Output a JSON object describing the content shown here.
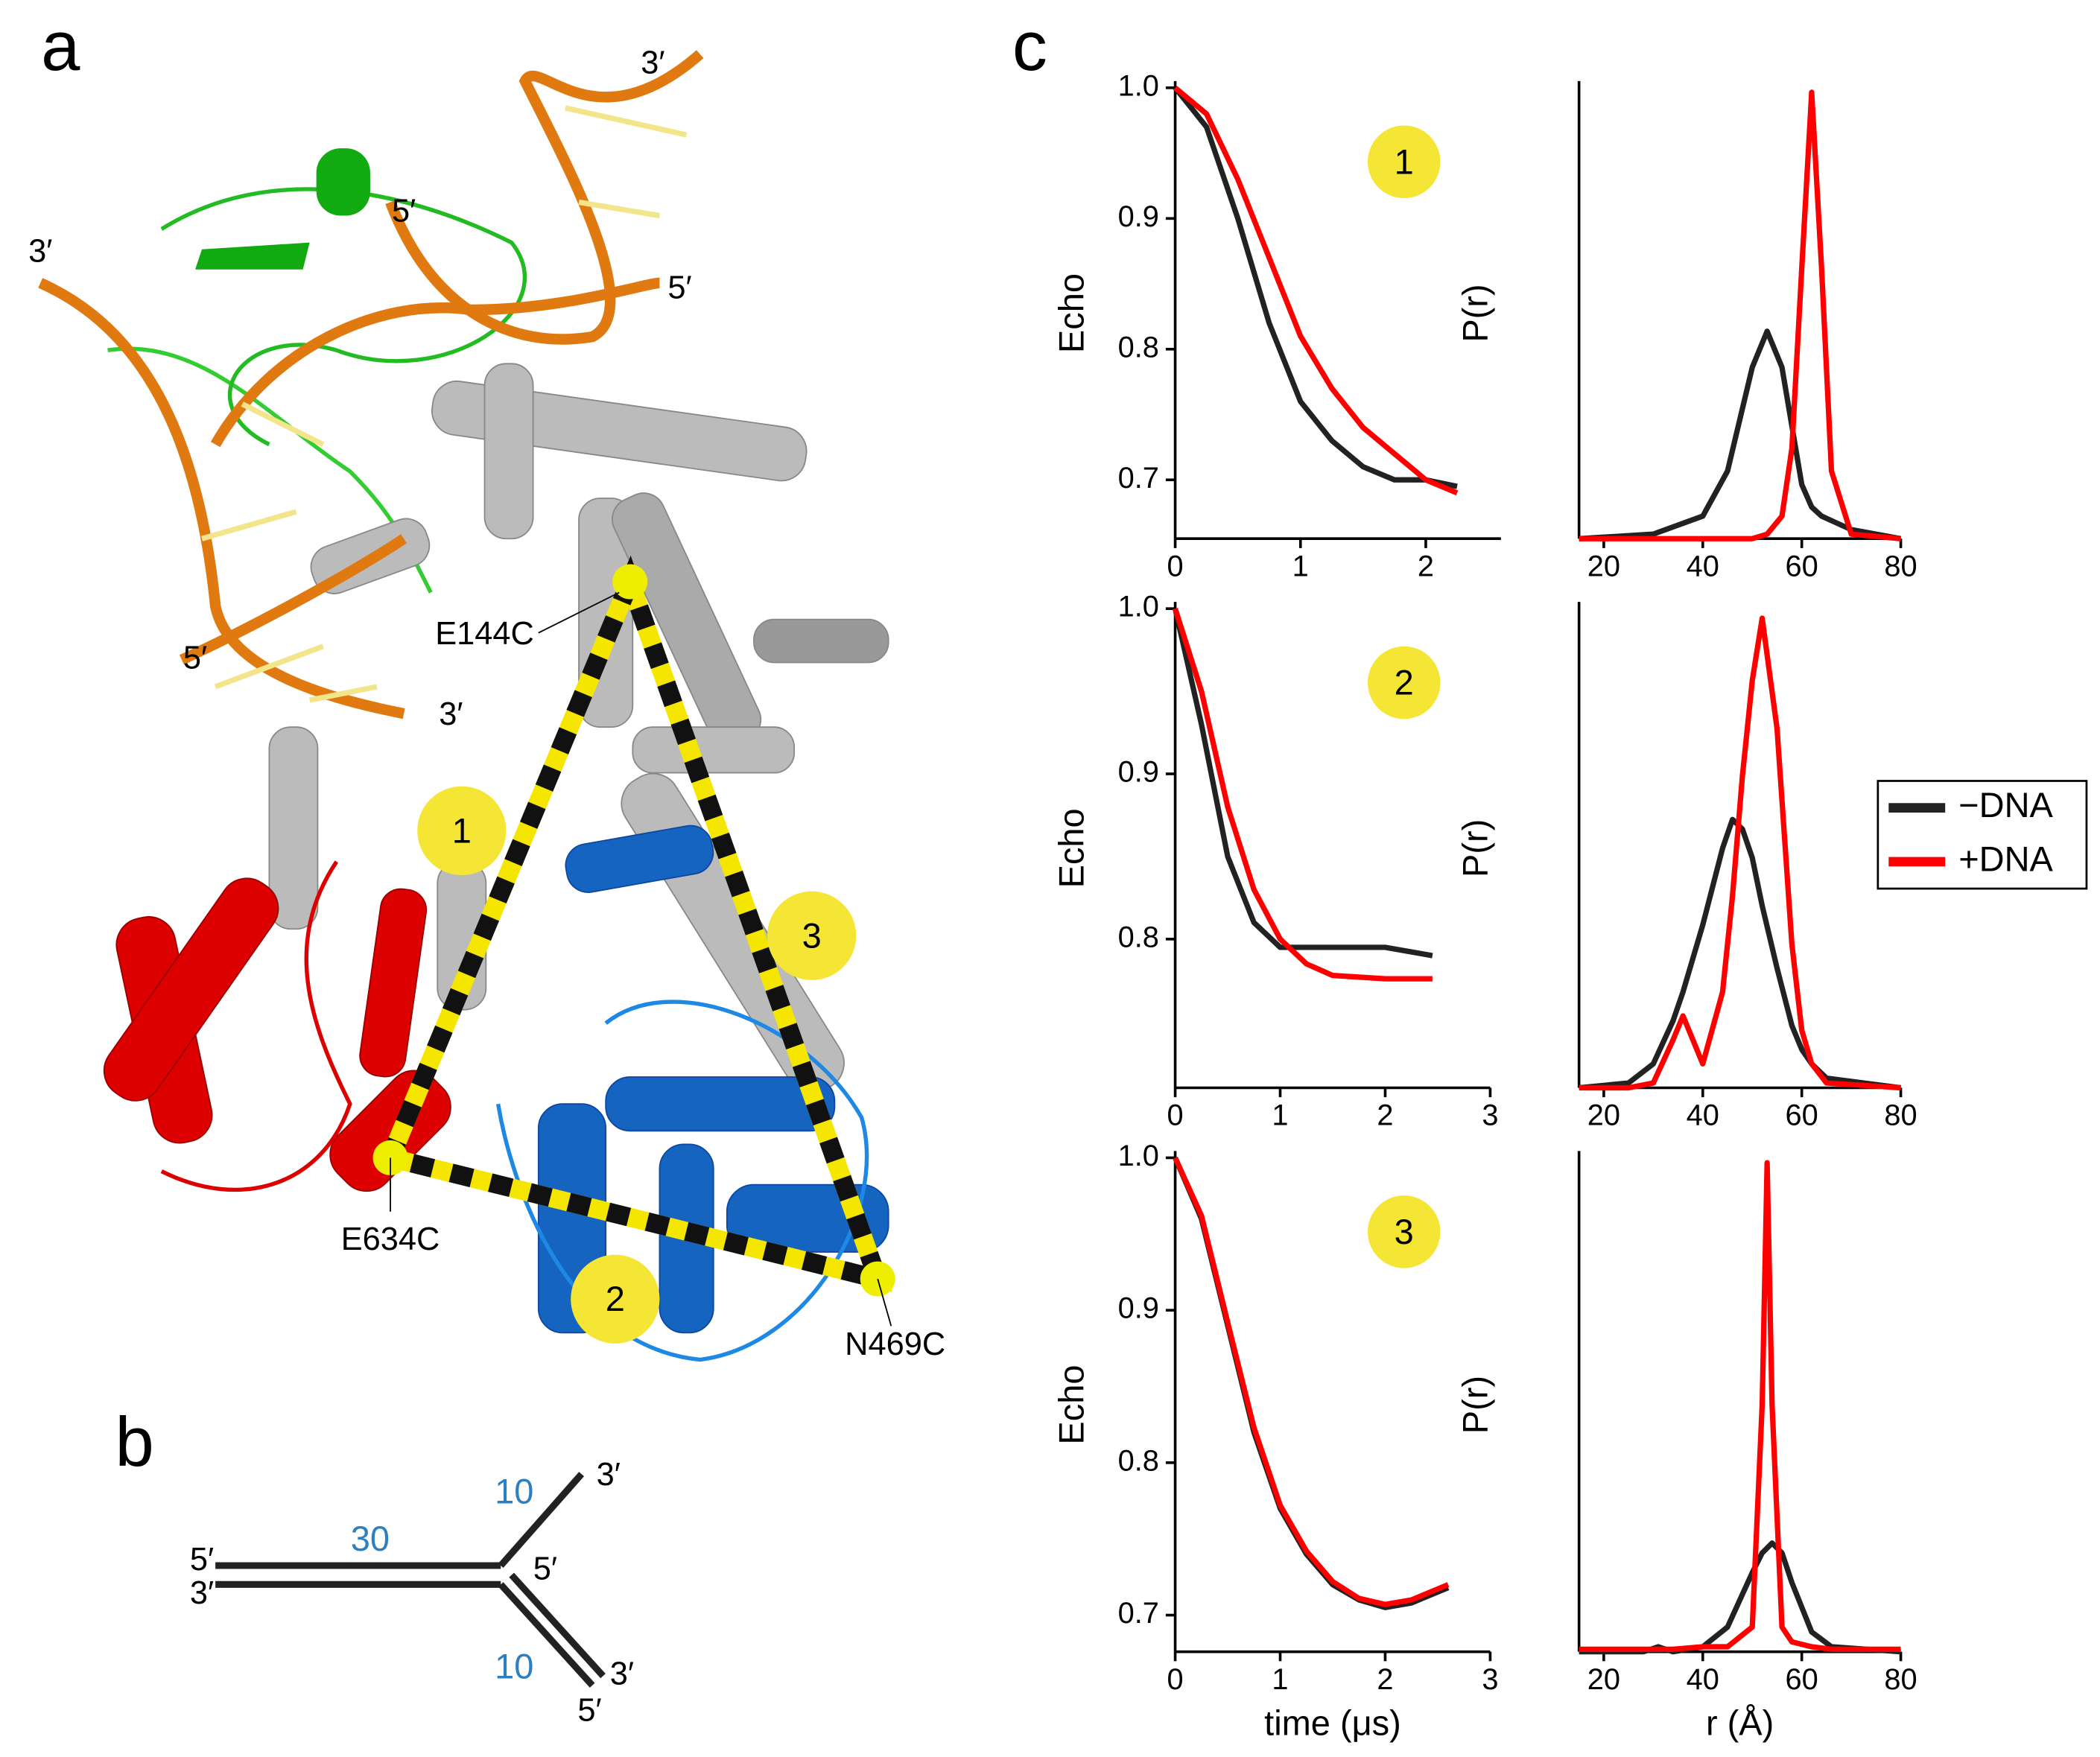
{
  "panel_labels": [
    "a",
    "b",
    "c"
  ],
  "structure": {
    "labels": [
      "3′",
      "5′",
      "3′",
      "5′",
      "5′",
      "3′",
      "E144C",
      "E634C",
      "N469C"
    ],
    "distances": [
      "1",
      "2",
      "3"
    ]
  },
  "dna_diagram": {
    "labels": [
      "5′",
      "3′",
      "30",
      "10",
      "3′",
      "5′",
      "10",
      "3′",
      "5′"
    ]
  },
  "chart_data": [
    {
      "type": "line",
      "ylabel": "Echo",
      "annotation": "1",
      "x": [
        0,
        0.25,
        0.5,
        0.75,
        1,
        1.25,
        1.5,
        1.75,
        2,
        2.25
      ],
      "series": [
        {
          "name": "−DNA",
          "color": "#222222",
          "values": [
            1,
            0.97,
            0.9,
            0.82,
            0.76,
            0.73,
            0.71,
            0.7,
            0.7,
            0.695
          ]
        },
        {
          "name": "+DNA",
          "color": "#ff0000",
          "values": [
            1,
            0.98,
            0.93,
            0.87,
            0.81,
            0.77,
            0.74,
            0.72,
            0.7,
            0.69
          ]
        }
      ],
      "xlim": [
        0,
        2.6
      ],
      "ylim": [
        0.655,
        1.0
      ],
      "xticks": [
        0,
        1,
        2
      ],
      "yticks": [
        0.7,
        0.8,
        0.9,
        {
          "value": 1,
          "label": "1.0"
        }
      ]
    },
    {
      "type": "line",
      "ylabel": "P(r)",
      "x": [
        15,
        30,
        40,
        45,
        50,
        53,
        56,
        58,
        60,
        62,
        64,
        66,
        70,
        80
      ],
      "series": [
        {
          "name": "−DNA",
          "color": "#222222",
          "values": [
            0,
            0.01,
            0.05,
            0.15,
            0.38,
            0.46,
            0.38,
            0.25,
            0.12,
            0.07,
            0.05,
            0.04,
            0.02,
            0
          ]
        },
        {
          "name": "+DNA",
          "color": "#ff0000",
          "values": [
            0,
            0,
            0,
            0,
            0,
            0.01,
            0.05,
            0.2,
            0.6,
            0.99,
            0.6,
            0.15,
            0.01,
            0
          ]
        }
      ],
      "xlim": [
        15,
        80
      ],
      "ylim": [
        0,
        1
      ],
      "xticks": [
        20,
        40,
        60,
        80
      ]
    },
    {
      "type": "line",
      "ylabel": "Echo",
      "annotation": "2",
      "x": [
        0,
        0.25,
        0.5,
        0.75,
        1,
        1.25,
        1.5,
        2,
        2.45
      ],
      "series": [
        {
          "name": "−DNA",
          "color": "#222222",
          "values": [
            1,
            0.93,
            0.85,
            0.81,
            0.795,
            0.795,
            0.795,
            0.795,
            0.79
          ]
        },
        {
          "name": "+DNA",
          "color": "#ff0000",
          "values": [
            1,
            0.95,
            0.88,
            0.83,
            0.8,
            0.785,
            0.778,
            0.776,
            0.776
          ]
        }
      ],
      "xlim": [
        0,
        3
      ],
      "ylim": [
        0.71,
        1.0
      ],
      "xticks": [
        0,
        1,
        2,
        3
      ],
      "yticks": [
        0.8,
        0.9,
        {
          "value": 1,
          "label": "1.0"
        }
      ]
    },
    {
      "type": "line",
      "ylabel": "P(r)",
      "legend": "right",
      "x": [
        15,
        25,
        30,
        34,
        36,
        38,
        40,
        44,
        46,
        48,
        50,
        52,
        55,
        58,
        60,
        62,
        65,
        80
      ],
      "series": [
        {
          "name": "−DNA",
          "color": "#222222",
          "values": [
            0,
            0.01,
            0.05,
            0.14,
            0.2,
            0.27,
            0.34,
            0.5,
            0.56,
            0.54,
            0.48,
            0.38,
            0.25,
            0.13,
            0.08,
            0.05,
            0.02,
            0
          ]
        },
        {
          "name": "+DNA",
          "color": "#ff0000",
          "values": [
            0,
            0,
            0.01,
            0.1,
            0.15,
            0.1,
            0.05,
            0.2,
            0.4,
            0.65,
            0.85,
            0.98,
            0.75,
            0.3,
            0.12,
            0.05,
            0.01,
            0
          ]
        }
      ],
      "xlim": [
        15,
        80
      ],
      "ylim": [
        0,
        1
      ],
      "xticks": [
        20,
        40,
        60,
        80
      ]
    },
    {
      "type": "line",
      "ylabel": "Echo",
      "xlabel": "time (μs)",
      "annotation": "3",
      "x": [
        0,
        0.25,
        0.5,
        0.75,
        1,
        1.25,
        1.5,
        1.75,
        2,
        2.25,
        2.6
      ],
      "series": [
        {
          "name": "−DNA",
          "color": "#222222",
          "values": [
            1,
            0.96,
            0.89,
            0.82,
            0.77,
            0.74,
            0.72,
            0.71,
            0.705,
            0.708,
            0.718
          ]
        },
        {
          "name": "+DNA",
          "color": "#ff0000",
          "values": [
            1,
            0.962,
            0.892,
            0.823,
            0.772,
            0.742,
            0.722,
            0.711,
            0.707,
            0.71,
            0.72
          ]
        }
      ],
      "xlim": [
        0,
        3
      ],
      "ylim": [
        0.676,
        1.0
      ],
      "xticks": [
        0,
        1,
        2,
        3
      ],
      "yticks": [
        0.7,
        0.8,
        0.9,
        {
          "value": 1,
          "label": "1.0"
        }
      ]
    },
    {
      "type": "line",
      "ylabel": "P(r)",
      "xlabel": "r (Å)",
      "x": [
        15,
        28,
        31,
        34,
        40,
        45,
        50,
        52,
        53,
        54,
        56,
        58,
        62,
        66,
        80
      ],
      "series": [
        {
          "name": "−DNA",
          "color": "#222222",
          "values": [
            0,
            0,
            0.01,
            0,
            0.01,
            0.05,
            0.16,
            0.2,
            0.21,
            0.22,
            0.2,
            0.14,
            0.04,
            0.01,
            0
          ]
        },
        {
          "name": "+DNA",
          "color": "#ff0000",
          "values": [
            0.005,
            0.005,
            0.005,
            0.005,
            0.01,
            0.01,
            0.05,
            0.5,
            0.99,
            0.5,
            0.05,
            0.02,
            0.01,
            0.005,
            0.005
          ]
        }
      ],
      "xlim": [
        15,
        80
      ],
      "ylim": [
        0,
        1
      ],
      "xticks": [
        20,
        40,
        60,
        80
      ]
    }
  ]
}
